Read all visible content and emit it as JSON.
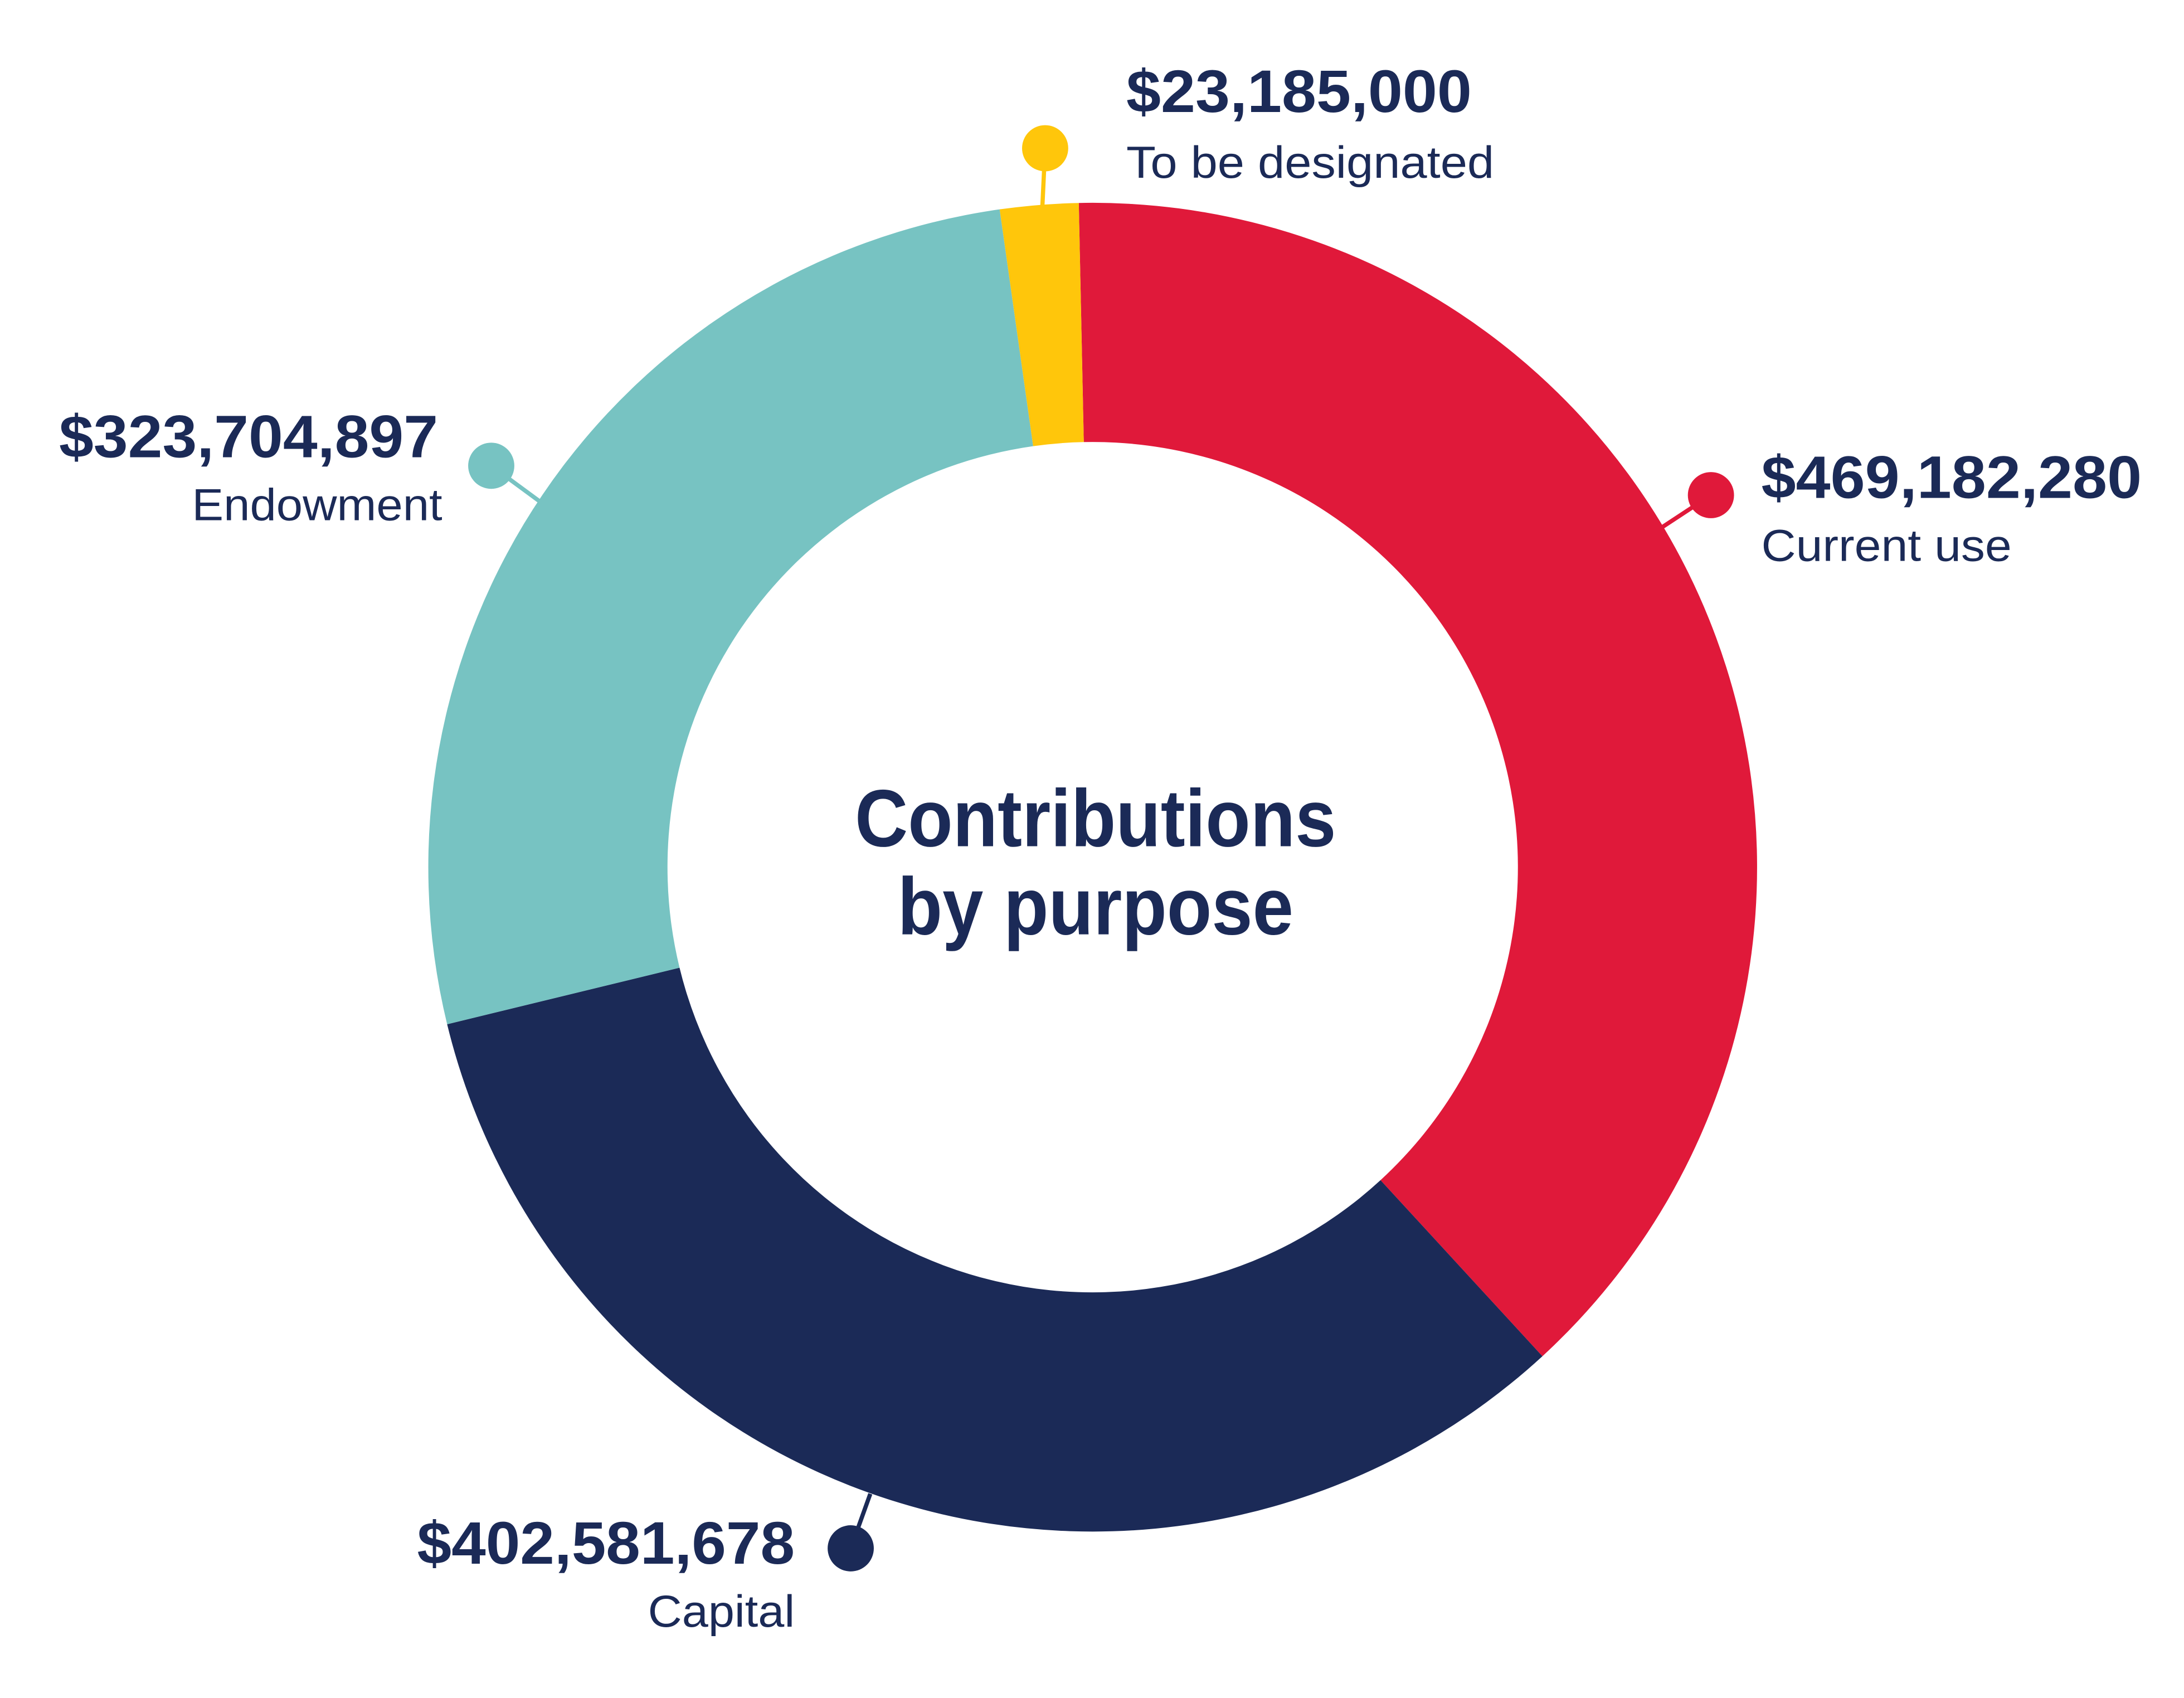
{
  "chart_data": {
    "type": "pie",
    "subtype": "donut",
    "title": "Contributions by purpose",
    "title_lines": [
      "Contributions",
      "by purpose"
    ],
    "text_color": "#1B2A57",
    "slices": [
      {
        "label": "Current use",
        "value": 469182280,
        "value_label": "$469,182,280",
        "color": "#E0193A"
      },
      {
        "label": "Capital",
        "value": 402581678,
        "value_label": "$402,581,678",
        "color": "#1B2A57"
      },
      {
        "label": "Endowment",
        "value": 323704897,
        "value_label": "$323,704,897",
        "color": "#77C3C2"
      },
      {
        "label": "To be designated",
        "value": 23185000,
        "value_label": "$23,185,000",
        "color": "#FFC60B"
      }
    ],
    "legend": "none"
  }
}
